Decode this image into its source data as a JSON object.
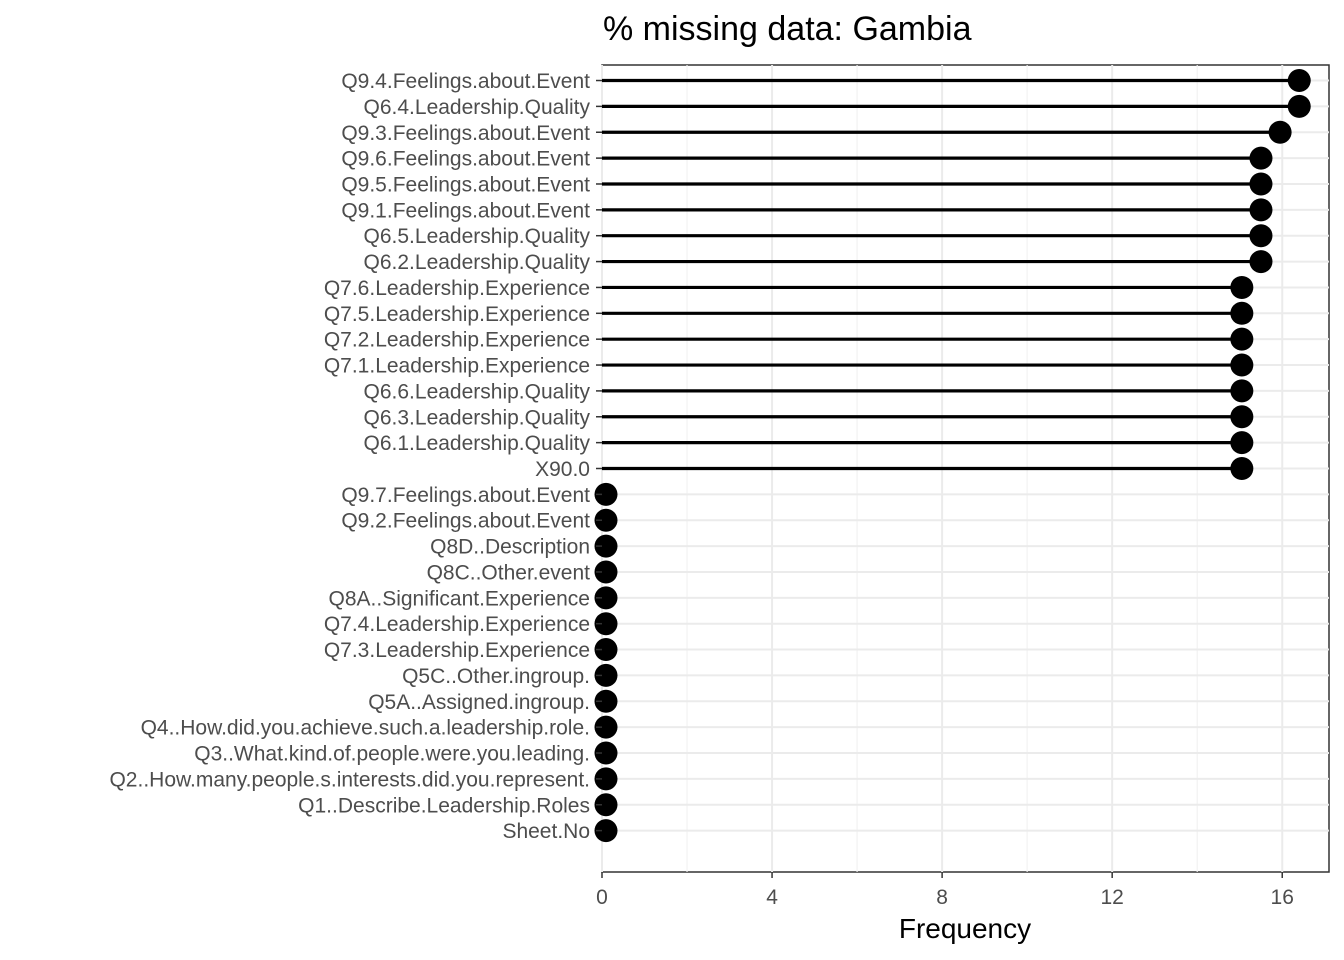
{
  "chart_data": {
    "type": "lollipop",
    "title": "% missing data: Gambia",
    "xlabel": "Frequency",
    "ylabel": "",
    "xlim": [
      0,
      17.1
    ],
    "x_ticks": [
      0,
      4,
      8,
      12,
      16
    ],
    "x_tick_labels": [
      "0",
      "4",
      "8",
      "12",
      "16"
    ],
    "grid": true,
    "legend": "none",
    "colors": {
      "mark": "#000000",
      "grid_major": "#ebebeb",
      "grid_minor": "#f2f2f2",
      "panel_border": "#333333",
      "tick_label": "#4d4d4d"
    },
    "categories": [
      "Q9.4.Feelings.about.Event",
      "Q6.4.Leadership.Quality",
      "Q9.3.Feelings.about.Event",
      "Q9.6.Feelings.about.Event",
      "Q9.5.Feelings.about.Event",
      "Q9.1.Feelings.about.Event",
      "Q6.5.Leadership.Quality",
      "Q6.2.Leadership.Quality",
      "Q7.6.Leadership.Experience",
      "Q7.5.Leadership.Experience",
      "Q7.2.Leadership.Experience",
      "Q7.1.Leadership.Experience",
      "Q6.6.Leadership.Quality",
      "Q6.3.Leadership.Quality",
      "Q6.1.Leadership.Quality",
      "X90.0",
      "Q9.7.Feelings.about.Event",
      "Q9.2.Feelings.about.Event",
      "Q8D..Description",
      "Q8C..Other.event",
      "Q8A..Significant.Experience",
      "Q7.4.Leadership.Experience",
      "Q7.3.Leadership.Experience",
      "Q5C..Other.ingroup.",
      "Q5A..Assigned.ingroup.",
      "Q4..How.did.you.achieve.such.a.leadership.role.",
      "Q3..What.kind.of.people.were.you.leading.",
      "Q2..How.many.people.s.interests.did.you.represent.",
      "Q1..Describe.Leadership.Roles",
      "Sheet.No"
    ],
    "values": [
      16.4,
      16.4,
      15.95,
      15.5,
      15.5,
      15.5,
      15.5,
      15.5,
      15.05,
      15.05,
      15.05,
      15.05,
      15.05,
      15.05,
      15.05,
      15.05,
      0,
      0,
      0,
      0,
      0,
      0,
      0,
      0,
      0,
      0,
      0,
      0,
      0,
      0
    ]
  }
}
